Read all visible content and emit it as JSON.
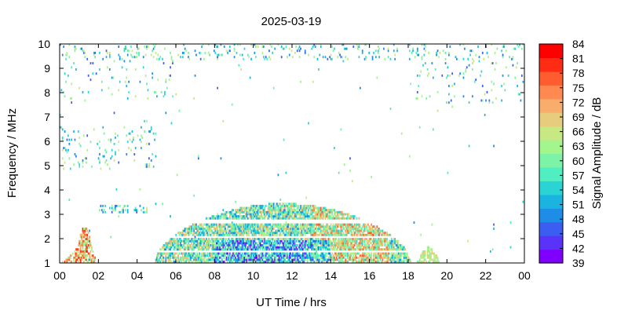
{
  "chart_data": {
    "type": "heatmap",
    "title": "2025-03-19",
    "xlabel": "UT Time / hrs",
    "ylabel": "Frequency / MHz",
    "colorbar_label": "Signal Amplitude / dB",
    "xlim": [
      0,
      24
    ],
    "ylim": [
      1,
      10
    ],
    "x_ticks": [
      "00",
      "02",
      "04",
      "06",
      "08",
      "10",
      "12",
      "14",
      "16",
      "18",
      "20",
      "22",
      "00"
    ],
    "y_ticks": [
      "1",
      "2",
      "3",
      "4",
      "5",
      "6",
      "7",
      "8",
      "9",
      "10"
    ],
    "colorbar_range": [
      39,
      84
    ],
    "colorbar_ticks": [
      "39",
      "42",
      "45",
      "48",
      "51",
      "54",
      "57",
      "60",
      "63",
      "66",
      "69",
      "72",
      "75",
      "78",
      "81",
      "84"
    ],
    "colormap": [
      "#8000ff",
      "#5a33f8",
      "#3b5ef0",
      "#1d8de8",
      "#1bb4e0",
      "#2ad4d4",
      "#50eec0",
      "#7cf3a6",
      "#a3f58e",
      "#c7e882",
      "#e6cc7c",
      "#f9ad6c",
      "#ff8950",
      "#ff5c30",
      "#ff2b14",
      "#ff0000"
    ],
    "grid": false,
    "regions": [
      {
        "name": "daytime band",
        "t_start": 4.9,
        "t_end": 18.1,
        "f_low": 1.0,
        "f_peak": 3.4,
        "amplitude_db": [
          48,
          72
        ]
      },
      {
        "name": "early burst",
        "t_start": 0.1,
        "t_end": 1.8,
        "f_low": 1.0,
        "f_peak": 2.2,
        "amplitude_db": [
          60,
          81
        ]
      },
      {
        "name": "evening patch",
        "t_start": 18.4,
        "t_end": 19.6,
        "f_low": 1.0,
        "f_peak": 1.6,
        "amplitude_db": [
          60,
          69
        ]
      }
    ]
  }
}
